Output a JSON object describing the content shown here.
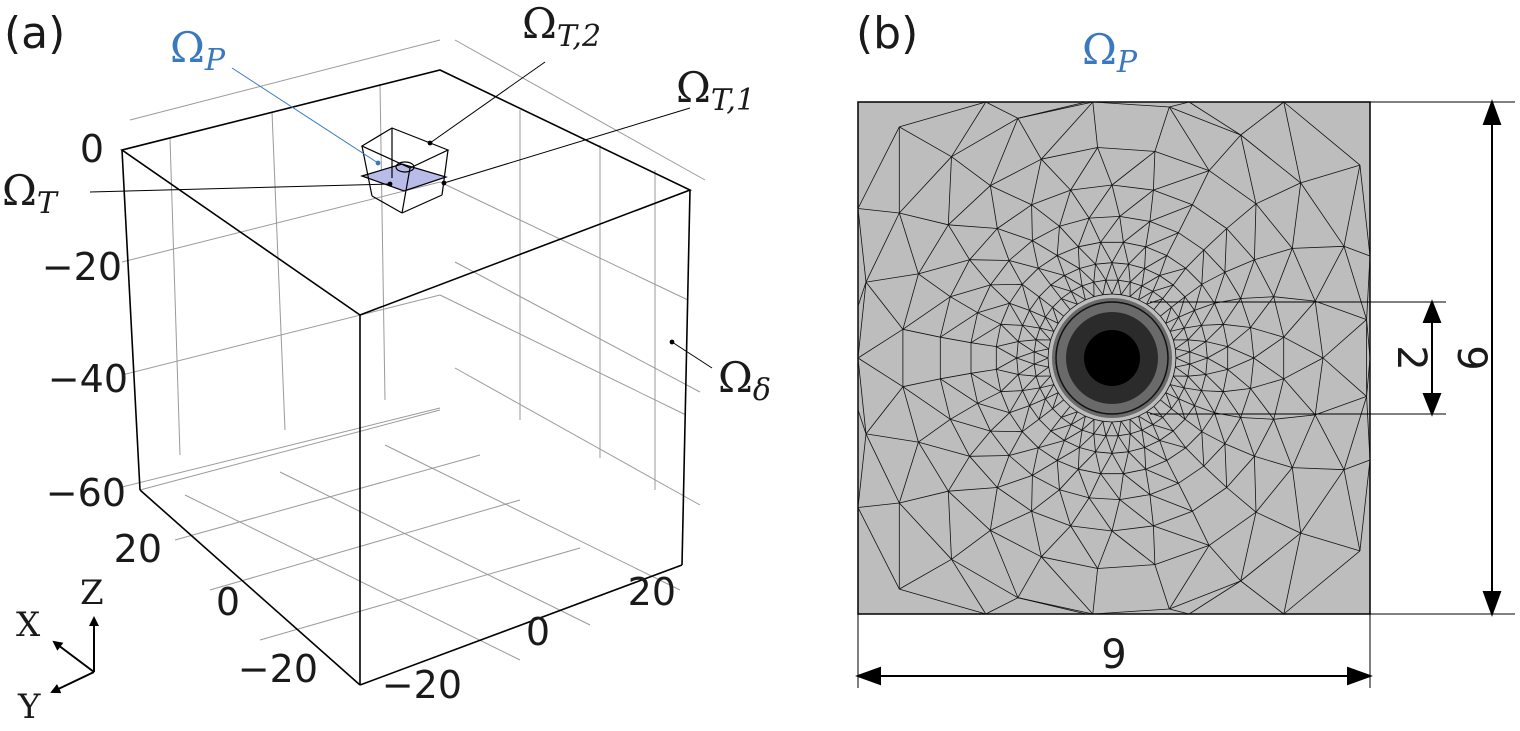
{
  "panel_a": {
    "label": "(a)",
    "z_ticks": [
      "0",
      "−20",
      "−40",
      "−60"
    ],
    "y_ticks": [
      "20",
      "0",
      "−20"
    ],
    "x_ticks": [
      "−20",
      "0",
      "20"
    ],
    "regions": {
      "omega_p": {
        "base": "Ω",
        "sub": "P"
      },
      "omega_t2": {
        "base": "Ω",
        "sub": "T,2"
      },
      "omega_t1": {
        "base": "Ω",
        "sub": "T,1"
      },
      "omega_t": {
        "base": "Ω",
        "sub": "T"
      },
      "omega_delta": {
        "base": "Ω",
        "sub": "δ"
      }
    },
    "triad": {
      "x": "X",
      "y": "Y",
      "z": "Z"
    }
  },
  "panel_b": {
    "label": "(b)",
    "title": {
      "base": "Ω",
      "sub": "P"
    },
    "dim_width": "9",
    "dim_height": "9",
    "dim_hole": "2"
  },
  "colors": {
    "blue_label": "#3a78c0",
    "mesh_fill": "#bdbdbd",
    "thin_layer": "#b9bce8"
  }
}
